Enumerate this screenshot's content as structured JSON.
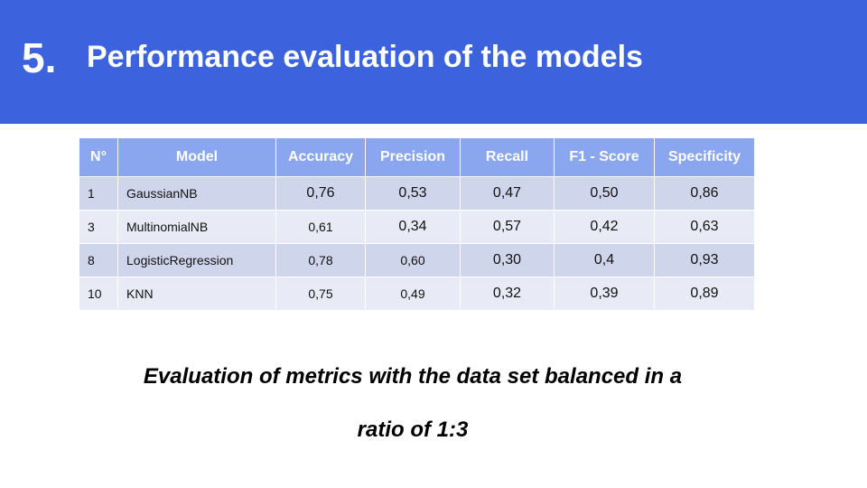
{
  "header": {
    "number": "5.",
    "title": "Performance evaluation of the models"
  },
  "table": {
    "columns": [
      "N°",
      "Model",
      "Accuracy",
      "Precision",
      "Recall",
      "F1 - Score",
      "Specificity"
    ],
    "rows": [
      [
        "1",
        "GaussianNB",
        "0,76",
        "0,53",
        "0,47",
        "0,50",
        "0,86"
      ],
      [
        "3",
        "MultinomialNB",
        "0,61",
        "0,34",
        "0,57",
        "0,42",
        "0,63"
      ],
      [
        "8",
        "LogisticRegression",
        "0,78",
        "0,60",
        "0,30",
        "0,4",
        "0,93"
      ],
      [
        "10",
        "KNN",
        "0,75",
        "0,49",
        "0,32",
        "0,39",
        "0,89"
      ]
    ]
  },
  "caption": {
    "line1": "Evaluation of metrics with the data set balanced in a",
    "line2": "ratio of 1:3"
  },
  "colors": {
    "banner": "#3c63dd",
    "header_row": "#8aa6ee",
    "row_dark": "#cfd5ea",
    "row_light": "#e8ebf5"
  }
}
